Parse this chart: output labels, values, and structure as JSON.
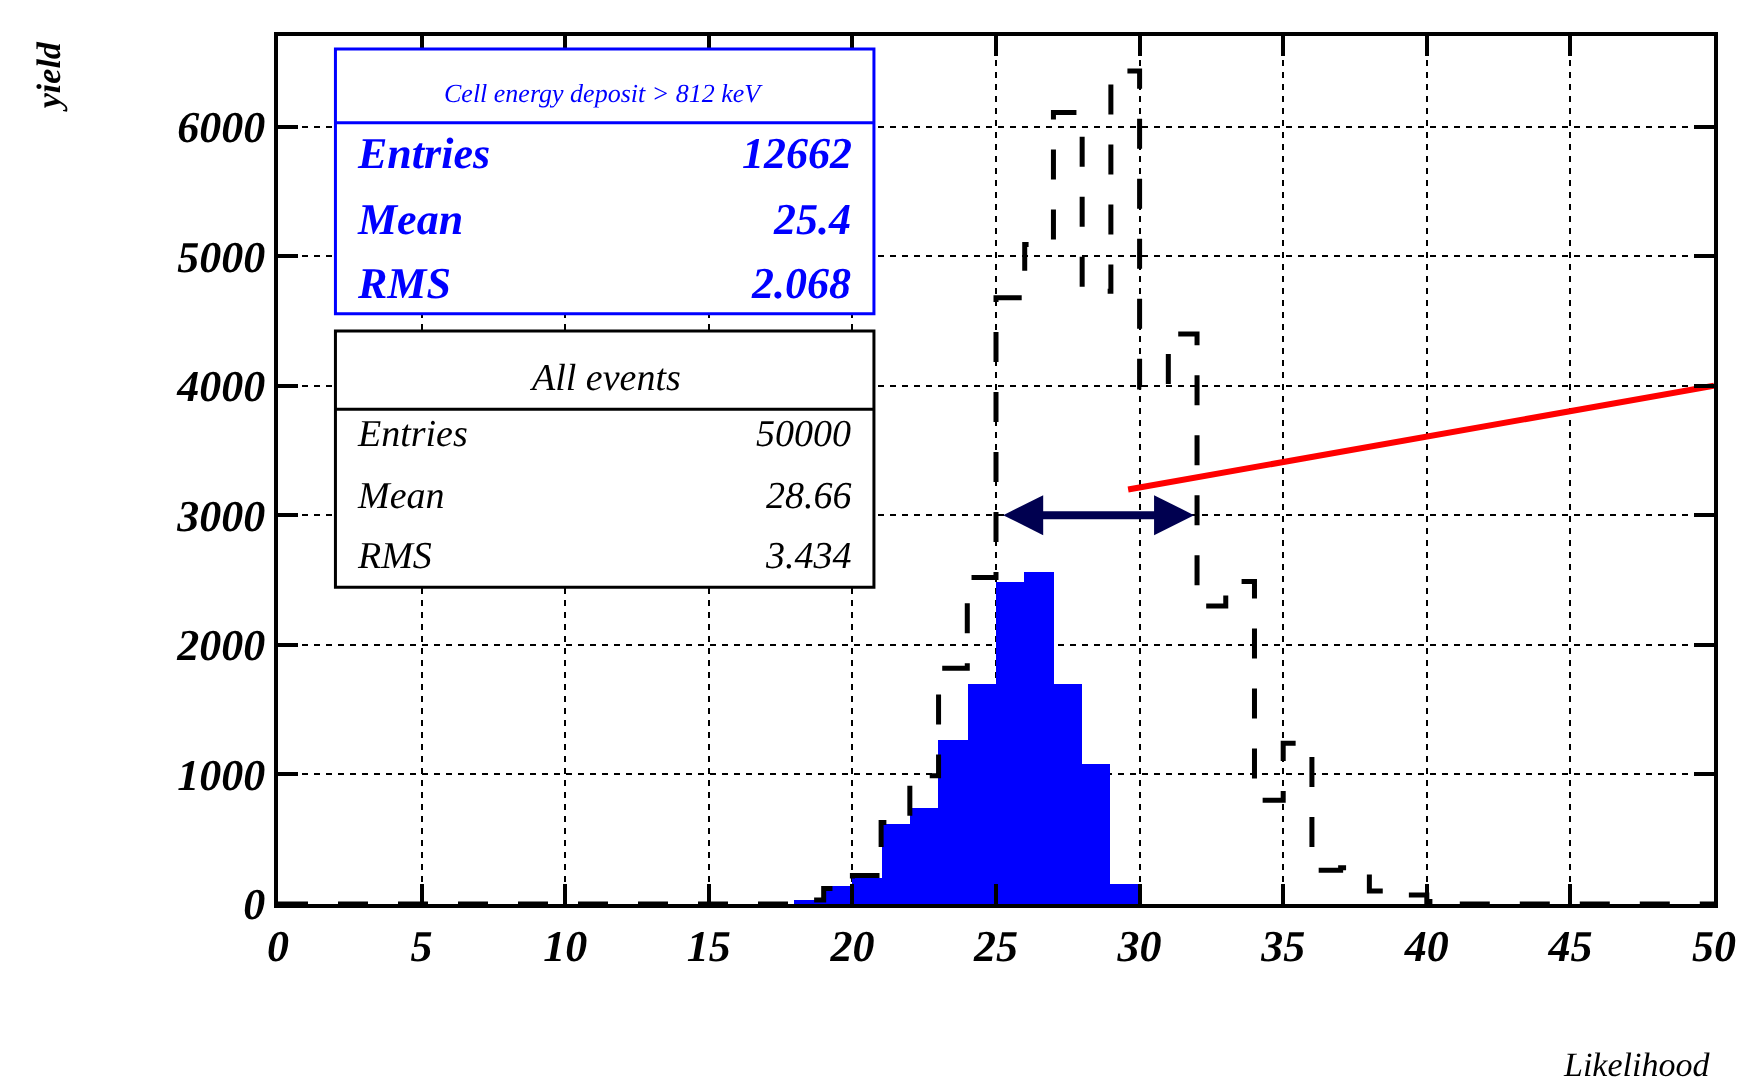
{
  "chart_data": {
    "type": "histogram",
    "xlabel": "Likelihood",
    "ylabel": "yield",
    "bins": [
      0,
      1,
      2,
      3,
      4,
      5,
      6,
      7,
      8,
      9,
      10,
      11,
      12,
      13,
      14,
      15,
      16,
      17,
      18,
      19,
      20,
      21,
      22,
      23,
      24,
      25,
      26,
      27,
      28,
      29,
      30,
      31,
      32,
      33,
      34,
      35,
      36,
      37,
      38,
      39,
      40,
      41,
      42,
      43,
      44,
      45,
      46,
      47,
      48,
      49,
      50
    ],
    "series": [
      {
        "color": "#0000ff",
        "values": [
          0,
          0,
          0,
          0,
          0,
          0,
          0,
          0,
          0,
          0,
          0,
          0,
          0,
          0,
          0,
          0,
          0,
          0,
          20,
          140,
          200,
          620,
          740,
          1260,
          1700,
          2490,
          2560,
          1700,
          1080,
          160,
          0,
          0,
          0,
          0,
          0,
          0,
          0,
          0,
          0,
          0,
          0,
          0,
          0,
          0,
          0,
          0,
          0,
          0,
          0,
          0
        ]
      },
      {
        "color": "#000000",
        "line_style": "dashed",
        "values": [
          0,
          0,
          0,
          0,
          0,
          0,
          0,
          0,
          0,
          0,
          0,
          0,
          0,
          0,
          0,
          0,
          0,
          0,
          30,
          120,
          220,
          630,
          990,
          1820,
          2520,
          4680,
          5090,
          6110,
          4730,
          6430,
          3990,
          4400,
          2300,
          2490,
          800,
          1240,
          260,
          280,
          100,
          70,
          20,
          0,
          0,
          0,
          0,
          0,
          0,
          0,
          0,
          0
        ]
      },
      {
        "type": "line",
        "color": "#ff0000",
        "x": [
          29.6,
          50
        ],
        "values": [
          3200,
          4000
        ]
      }
    ],
    "annotations": [
      "Cell energy deposit > 812 keV",
      "Entries",
      "12662",
      "Mean",
      "25.4",
      "RMS",
      "2.068",
      "All events",
      "Entries",
      "50000",
      "Mean",
      "28.66",
      "RMS",
      "3.434"
    ],
    "xlim": [
      0,
      50
    ],
    "xticks": [
      0,
      5,
      10,
      15,
      20,
      25,
      30,
      35,
      40,
      45,
      50
    ],
    "ylim": [
      0,
      6700
    ],
    "yticks": [
      0,
      1000,
      2000,
      3000,
      4000,
      5000,
      6000
    ],
    "grid": true
  }
}
